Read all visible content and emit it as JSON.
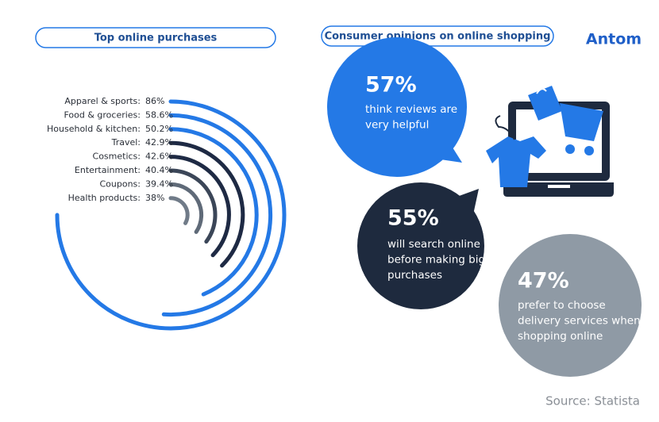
{
  "chart_data": {
    "type": "radial_bar",
    "title": "Top online purchases",
    "categories": [
      "Apparel & sports:",
      "Food & groceries:",
      "Household & kitchen:",
      "Travel:",
      "Cosmetics:",
      "Entertainment:",
      "Coupons:",
      "Health products:"
    ],
    "values": [
      86,
      58.6,
      50.2,
      42.9,
      42.6,
      40.4,
      39.4,
      38
    ],
    "value_labels": [
      "86%",
      "58.6%",
      "50.2%",
      "42.9%",
      "42.6%",
      "40.4%",
      "39.4%",
      "38%"
    ],
    "colors": [
      "#2479e6",
      "#2479e6",
      "#2479e6",
      "#1e2a44",
      "#1e2a44",
      "#3b4658",
      "#5f6a78",
      "#707b88"
    ]
  },
  "opinions": {
    "title": "Consumer opinions on online shopping",
    "items": [
      {
        "stat": "57%",
        "lines": [
          "think reviews are",
          "very helpful"
        ]
      },
      {
        "stat": "55%",
        "lines": [
          "will search online",
          "before making big",
          "purchases"
        ]
      },
      {
        "stat": "47%",
        "lines": [
          "prefer to choose",
          "delivery services when",
          "shopping online"
        ]
      }
    ]
  },
  "brand": "Antom",
  "source": "Source: Statista"
}
